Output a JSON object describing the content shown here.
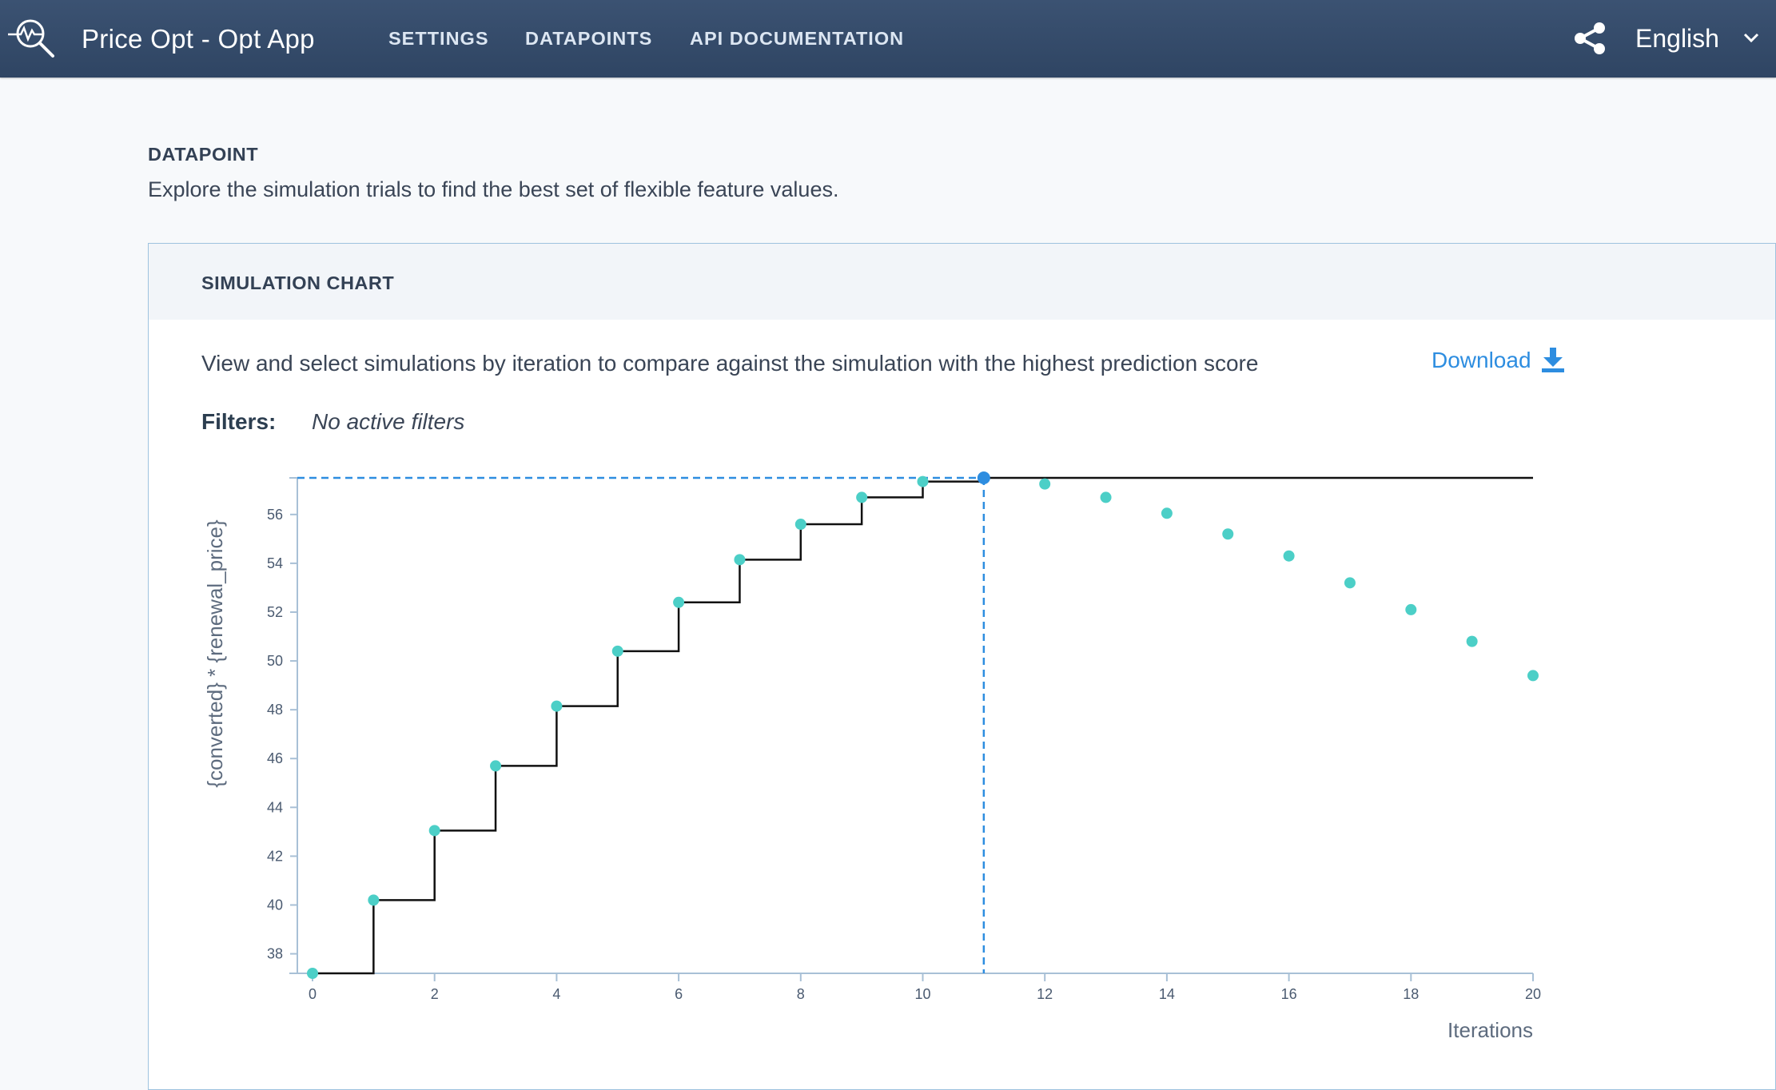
{
  "header": {
    "app_title": "Price Opt - Opt App",
    "nav": [
      "SETTINGS",
      "DATAPOINTS",
      "API DOCUMENTATION"
    ],
    "language": "English",
    "icons": [
      "logo-icon",
      "share-icon",
      "chevron-down-icon"
    ]
  },
  "page": {
    "title": "DATAPOINT",
    "description": "Explore the simulation trials to find the best set of flexible feature values."
  },
  "card": {
    "title": "SIMULATION CHART",
    "description": "View and select simulations by iteration to compare against the simulation with the highest prediction score",
    "download_label": "Download",
    "filters_label": "Filters:",
    "filters_value": "No active filters"
  },
  "colors": {
    "accent": "#2d8de0",
    "point": "#4ccfc7",
    "header_bg": "#334a69"
  },
  "chart_data": {
    "type": "scatter",
    "xlabel": "Iterations",
    "ylabel": "{converted} * {renewal_price}",
    "xlim": [
      0,
      20
    ],
    "ylim": [
      37.2,
      57.5
    ],
    "x_ticks": [
      0,
      2,
      4,
      6,
      8,
      10,
      12,
      14,
      16,
      18,
      20
    ],
    "y_ticks": [
      38,
      40,
      42,
      44,
      46,
      48,
      50,
      52,
      54,
      56
    ],
    "series": [
      {
        "points": [
          [
            0,
            37.2
          ],
          [
            1,
            40.2
          ],
          [
            2,
            43.05
          ],
          [
            3,
            45.7
          ],
          [
            4,
            48.15
          ],
          [
            5,
            50.4
          ],
          [
            6,
            52.4
          ],
          [
            7,
            54.15
          ],
          [
            8,
            55.6
          ],
          [
            9,
            56.7
          ],
          [
            10,
            57.35
          ],
          [
            11,
            57.5
          ],
          [
            12,
            57.25
          ],
          [
            13,
            56.7
          ],
          [
            14,
            56.05
          ],
          [
            15,
            55.2
          ],
          [
            16,
            54.3
          ],
          [
            17,
            53.2
          ],
          [
            18,
            52.1
          ],
          [
            19,
            50.8
          ],
          [
            20,
            49.4
          ]
        ]
      }
    ],
    "best_so_far_step_line": true,
    "selected_iteration": 11,
    "selected_value": 57.5
  }
}
